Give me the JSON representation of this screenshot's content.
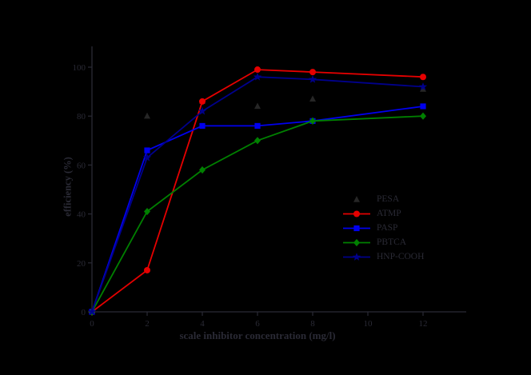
{
  "figure": {
    "title": ""
  },
  "colors": {
    "background": "#000000",
    "foreground": "#2a2a35"
  },
  "chart_data": {
    "type": "line",
    "title": "",
    "xlabel": "scale inhibitor concentration (mg/l)",
    "ylabel": "efficiency (%)",
    "xlim": [
      0,
      12
    ],
    "ylim": [
      0,
      100
    ],
    "xticks": [
      0,
      2,
      4,
      6,
      8,
      10,
      12
    ],
    "yticks": [
      0,
      20,
      40,
      60,
      80,
      100
    ],
    "grid": false,
    "legend_position": "inside-right",
    "series": [
      {
        "name": "PESA",
        "color": "#262626",
        "marker": "triangle",
        "line": false,
        "points": [
          [
            2,
            80
          ],
          [
            4,
            86
          ],
          [
            6,
            84
          ],
          [
            8,
            87
          ],
          [
            12,
            91
          ]
        ]
      },
      {
        "name": "ATMP",
        "color": "#e60000",
        "marker": "circle",
        "line": true,
        "points": [
          [
            0,
            0
          ],
          [
            2,
            17
          ],
          [
            4,
            86
          ],
          [
            6,
            99
          ],
          [
            8,
            98
          ],
          [
            12,
            96
          ]
        ]
      },
      {
        "name": "PASP",
        "color": "#0000ee",
        "marker": "square",
        "line": true,
        "points": [
          [
            0,
            0
          ],
          [
            2,
            66
          ],
          [
            4,
            76
          ],
          [
            6,
            76
          ],
          [
            8,
            78
          ],
          [
            12,
            84
          ]
        ]
      },
      {
        "name": "PBTCA",
        "color": "#008000",
        "marker": "diamond",
        "line": true,
        "points": [
          [
            0,
            0
          ],
          [
            2,
            41
          ],
          [
            4,
            58
          ],
          [
            6,
            70
          ],
          [
            8,
            78
          ],
          [
            12,
            80
          ]
        ]
      },
      {
        "name": "HNP-COOH",
        "color": "#00008b",
        "marker": "star",
        "line": true,
        "points": [
          [
            0,
            0
          ],
          [
            2,
            63
          ],
          [
            4,
            82
          ],
          [
            6,
            96
          ],
          [
            8,
            95
          ],
          [
            12,
            92
          ]
        ]
      }
    ]
  }
}
